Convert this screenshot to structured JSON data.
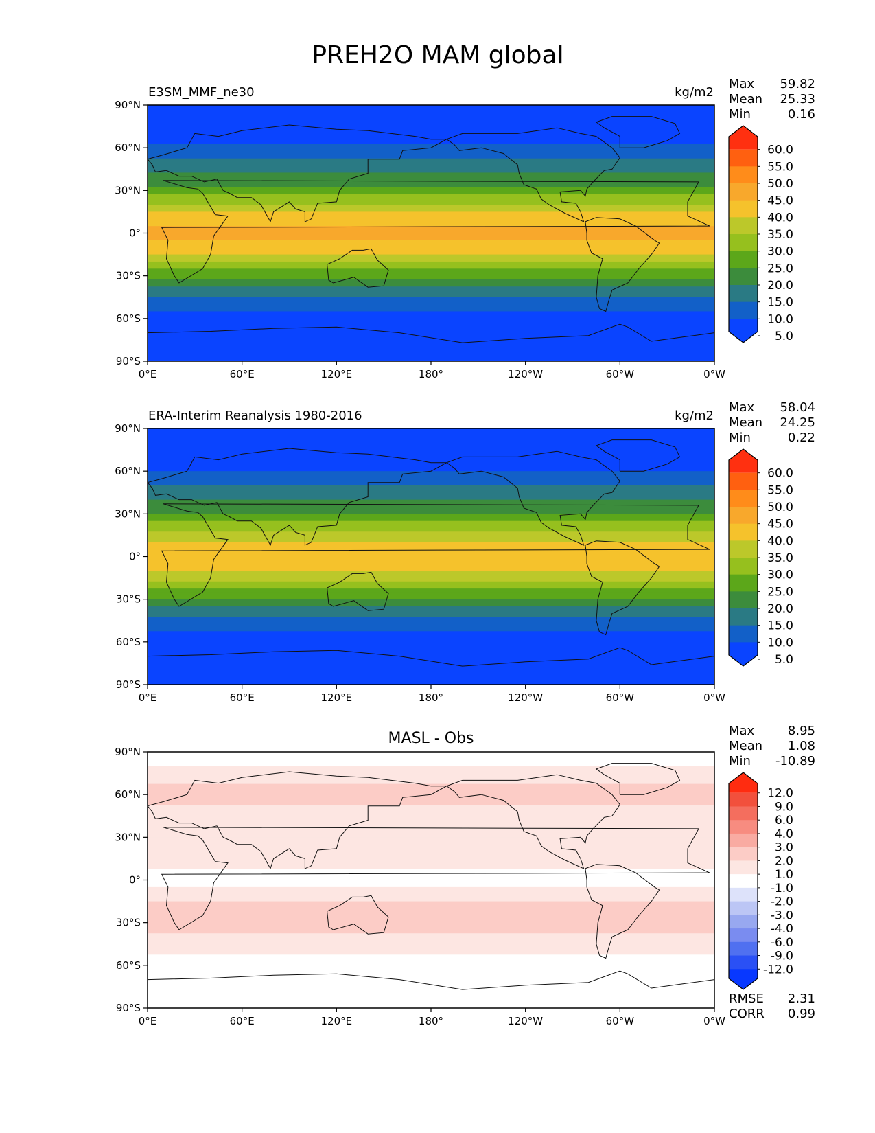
{
  "figure_title": "PREH2O MAM global",
  "chart_data": [
    {
      "type": "heatmap",
      "title": "E3SM_MMF_ne30",
      "units": "kg/m2",
      "stats": [
        {
          "label": "Max",
          "value": "59.82"
        },
        {
          "label": "Mean",
          "value": "25.33"
        },
        {
          "label": "Min",
          "value": "0.16"
        }
      ],
      "lat_ticks": [
        "90°N",
        "60°N",
        "30°N",
        "0°",
        "30°S",
        "60°S",
        "90°S"
      ],
      "lon_ticks": [
        "0°E",
        "60°E",
        "120°E",
        "180°",
        "120°W",
        "60°W",
        "0°W"
      ],
      "colorbar_levels": [
        "60.0",
        "55.0",
        "50.0",
        "45.0",
        "40.0",
        "35.0",
        "30.0",
        "25.0",
        "20.0",
        "15.0",
        "10.0",
        "5.0"
      ],
      "colors": [
        "#ff3010",
        "#ff6010",
        "#ff8c1a",
        "#f8a82c",
        "#f5c22c",
        "#bcc82a",
        "#96c01e",
        "#5ca71a",
        "#3c8c3c",
        "#2a7a84",
        "#1260c8",
        "#0a44ff"
      ],
      "profile_by_latitude": [
        {
          "lat": 90,
          "value": 3
        },
        {
          "lat": 75,
          "value": 6
        },
        {
          "lat": 60,
          "value": 11
        },
        {
          "lat": 45,
          "value": 18
        },
        {
          "lat": 30,
          "value": 27
        },
        {
          "lat": 15,
          "value": 40
        },
        {
          "lat": 0,
          "value": 47
        },
        {
          "lat": -15,
          "value": 40
        },
        {
          "lat": -30,
          "value": 26
        },
        {
          "lat": -45,
          "value": 15
        },
        {
          "lat": -60,
          "value": 8
        },
        {
          "lat": -75,
          "value": 3
        },
        {
          "lat": -90,
          "value": 1
        }
      ]
    },
    {
      "type": "heatmap",
      "title": "ERA-Interim Reanalysis 1980-2016",
      "units": "kg/m2",
      "stats": [
        {
          "label": "Max",
          "value": "58.04"
        },
        {
          "label": "Mean",
          "value": "24.25"
        },
        {
          "label": "Min",
          "value": "0.22"
        }
      ],
      "lat_ticks": [
        "90°N",
        "60°N",
        "30°N",
        "0°",
        "30°S",
        "60°S",
        "90°S"
      ],
      "lon_ticks": [
        "0°E",
        "60°E",
        "120°E",
        "180°",
        "120°W",
        "60°W",
        "0°W"
      ],
      "colorbar_levels": [
        "60.0",
        "55.0",
        "50.0",
        "45.0",
        "40.0",
        "35.0",
        "30.0",
        "25.0",
        "20.0",
        "15.0",
        "10.0",
        "5.0"
      ],
      "colors": [
        "#ff3010",
        "#ff6010",
        "#ff8c1a",
        "#f8a82c",
        "#f5c22c",
        "#bcc82a",
        "#96c01e",
        "#5ca71a",
        "#3c8c3c",
        "#2a7a84",
        "#1260c8",
        "#0a44ff"
      ],
      "profile_by_latitude": [
        {
          "lat": 90,
          "value": 3
        },
        {
          "lat": 75,
          "value": 6
        },
        {
          "lat": 60,
          "value": 10
        },
        {
          "lat": 45,
          "value": 17
        },
        {
          "lat": 30,
          "value": 25
        },
        {
          "lat": 15,
          "value": 38
        },
        {
          "lat": 0,
          "value": 45
        },
        {
          "lat": -15,
          "value": 38
        },
        {
          "lat": -30,
          "value": 24
        },
        {
          "lat": -45,
          "value": 14
        },
        {
          "lat": -60,
          "value": 7
        },
        {
          "lat": -75,
          "value": 3
        },
        {
          "lat": -90,
          "value": 1
        }
      ]
    },
    {
      "type": "heatmap",
      "title": "MASL - Obs",
      "units": "",
      "stats": [
        {
          "label": "Max",
          "value": "8.95"
        },
        {
          "label": "Mean",
          "value": "1.08"
        },
        {
          "label": "Min",
          "value": "-10.89"
        }
      ],
      "extra_stats": [
        {
          "label": "RMSE",
          "value": "2.31"
        },
        {
          "label": "CORR",
          "value": "0.99"
        }
      ],
      "lat_ticks": [
        "90°N",
        "60°N",
        "30°N",
        "0°",
        "30°S",
        "60°S",
        "90°S"
      ],
      "lon_ticks": [
        "0°E",
        "60°E",
        "120°E",
        "180°",
        "120°W",
        "60°W",
        "0°W"
      ],
      "colorbar_levels": [
        "12.0",
        "9.0",
        "6.0",
        "4.0",
        "3.0",
        "2.0",
        "1.0",
        "-1.0",
        "-2.0",
        "-3.0",
        "-4.0",
        "-6.0",
        "-9.0",
        "-12.0"
      ],
      "colors": [
        "#ff2c10",
        "#f2503c",
        "#f46e5e",
        "#f78c80",
        "#f9aba2",
        "#fcccc6",
        "#fde6e2",
        "#ffffff",
        "#dde2fa",
        "#bcc6f5",
        "#98a8f0",
        "#7a8cf0",
        "#5070f0",
        "#2a50f5",
        "#0838ff"
      ],
      "profile_by_latitude": [
        {
          "lat": 90,
          "value": 0
        },
        {
          "lat": 75,
          "value": 1.5
        },
        {
          "lat": 60,
          "value": 2.5
        },
        {
          "lat": 45,
          "value": 1.5
        },
        {
          "lat": 30,
          "value": 1
        },
        {
          "lat": 15,
          "value": 1.5
        },
        {
          "lat": 0,
          "value": 0.5
        },
        {
          "lat": -15,
          "value": 2
        },
        {
          "lat": -30,
          "value": 2.5
        },
        {
          "lat": -45,
          "value": 1.5
        },
        {
          "lat": -60,
          "value": 0.5
        },
        {
          "lat": -75,
          "value": 0
        },
        {
          "lat": -90,
          "value": 0
        }
      ]
    }
  ]
}
